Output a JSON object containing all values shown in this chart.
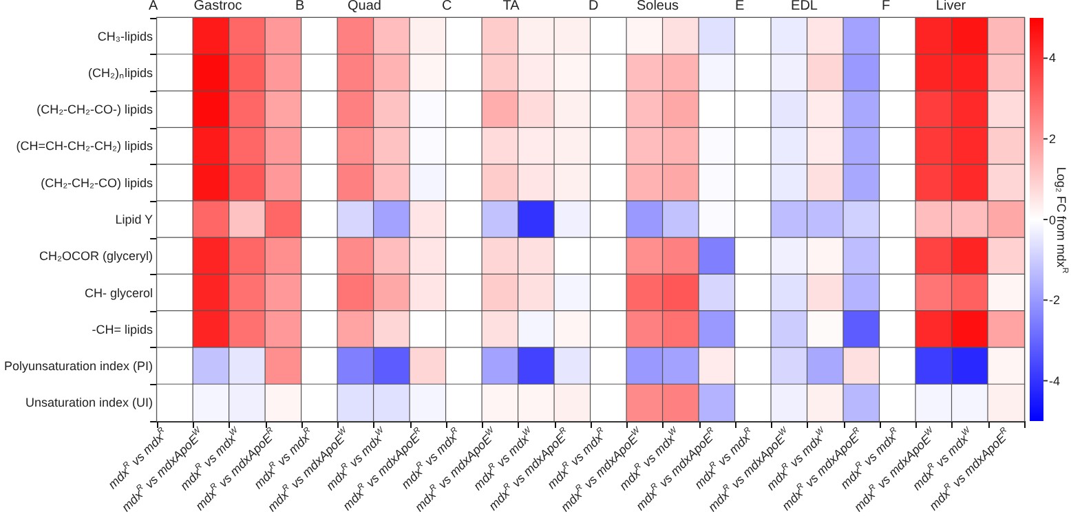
{
  "chart_data": {
    "type": "heatmap",
    "annotations": [
      "A",
      "Gastroc",
      "B",
      "Quad",
      "C",
      "TA",
      "D",
      "Soleus",
      "E",
      "EDL",
      "F",
      "Liver"
    ],
    "categories": [
      "mdx$^{R}$ vs mdx$^{R}$",
      "mdx$^{R}$ vs mdxApoE$^{W}$",
      "mdx$^{R}$ vs mdx$^{W}$",
      "mdx$^{R}$ vs mdxApoE$^{R}$",
      "mdx$^{R}$ vs mdx$^{R}$",
      "mdx$^{R}$ vs mdxApoE$^{W}$",
      "mdx$^{R}$ vs mdx$^{W}$",
      "mdx$^{R}$ vs mdxApoE$^{R}$",
      "mdx$^{R}$ vs mdx$^{R}$",
      "mdx$^{R}$ vs mdxApoE$^{W}$",
      "mdx$^{R}$ vs mdx$^{W}$",
      "mdx$^{R}$ vs mdxApoE$^{R}$",
      "mdx$^{R}$ vs mdx$^{R}$",
      "mdx$^{R}$ vs mdxApoE$^{W}$",
      "mdx$^{R}$ vs mdx$^{W}$",
      "mdx$^{R}$ vs mdxApoE$^{R}$",
      "mdx$^{R}$ vs mdx$^{R}$",
      "mdx$^{R}$ vs mdxApoE$^{W}$",
      "mdx$^{R}$ vs mdx$^{W}$",
      "mdx$^{R}$ vs mdxApoE$^{R}$",
      "mdx$^{R}$ vs mdx$^{R}$",
      "mdx$^{R}$ vs mdxApoE$^{W}$",
      "mdx$^{R}$ vs mdx$^{W}$",
      "mdx$^{R}$ vs mdxApoE$^{R}$"
    ],
    "y_categories": [
      "CH₃-lipids",
      "(CH₂)ₙlipids",
      "(CH₂-CH₂-CO-) lipids",
      "(CH=CH-CH₂-CH₂) lipids",
      "(CH₂-CH₂-CO) lipids",
      "Lipid Y",
      "CH₂OCOR (glyceryl)",
      "CH- glycerol",
      "-CH= lipids",
      "Polyunsaturation index (PI)",
      "Unsaturation index (UI)"
    ],
    "cells": [
      [
        0,
        4.5,
        3,
        2,
        0,
        2.5,
        1.3,
        0.3,
        0,
        1,
        0.3,
        0.3,
        0,
        0.2,
        0.6,
        -0.6,
        0,
        -0.4,
        0.5,
        -1.8,
        0,
        4.3,
        4.6,
        1.4
      ],
      [
        0,
        4.8,
        3.2,
        2,
        0,
        2.5,
        1.5,
        0.2,
        0,
        1,
        0.4,
        0.2,
        0,
        1.3,
        1.5,
        -0.2,
        0,
        -0.3,
        0.8,
        -2,
        0,
        4.3,
        4.4,
        1.2
      ],
      [
        0,
        4.8,
        3,
        1.8,
        0,
        2.5,
        1.2,
        -0.1,
        0,
        1.6,
        0.7,
        0.3,
        0,
        1.3,
        1.7,
        0,
        0,
        -0.5,
        0.4,
        -1.7,
        0,
        3.8,
        4.2,
        0.7
      ],
      [
        0,
        4.5,
        3,
        2,
        0,
        2.2,
        1.2,
        -0.1,
        0,
        0.7,
        0.4,
        0.3,
        0,
        1.3,
        1.5,
        -0.1,
        0,
        -0.4,
        0.4,
        -1.7,
        0,
        3.9,
        4.2,
        1
      ],
      [
        0,
        4.6,
        3.3,
        2,
        0,
        2.5,
        1.3,
        -0.2,
        0,
        1,
        0.5,
        0.3,
        0,
        1.5,
        1.7,
        -0.1,
        0,
        -0.4,
        0.6,
        -1.7,
        0,
        3.8,
        4.2,
        0.8
      ],
      [
        0,
        3,
        1.2,
        3,
        0,
        -0.8,
        -1.8,
        0.5,
        0,
        -1.2,
        -4,
        -0.3,
        0,
        -2,
        -1.2,
        -0.1,
        0,
        -1.3,
        -1.3,
        -0.9,
        0,
        1.3,
        1.3,
        1.7
      ],
      [
        0,
        4.3,
        3,
        2.2,
        0,
        2.3,
        1.3,
        0.5,
        0,
        0.8,
        0.6,
        0,
        0,
        2.2,
        2.5,
        -2.5,
        0,
        -0.3,
        0.2,
        -1.3,
        0,
        3.7,
        4.3,
        0.9
      ],
      [
        0,
        4.3,
        2.8,
        2,
        0,
        2.7,
        1.7,
        0.5,
        0,
        1,
        0.6,
        -0.2,
        0,
        3,
        3.3,
        -0.8,
        0,
        -0.6,
        0.6,
        -1.5,
        0,
        2.7,
        3.1,
        0.2
      ],
      [
        0,
        4.3,
        2.8,
        2,
        0,
        1.8,
        0.8,
        0,
        0,
        0.6,
        -0.2,
        0.2,
        0,
        2.5,
        2.8,
        -2,
        0,
        -1,
        0.1,
        -3.2,
        0,
        4.2,
        4.7,
        1.8
      ],
      [
        0,
        -1.2,
        -0.5,
        2.2,
        0,
        -2.5,
        -3.2,
        0.8,
        0,
        -1.8,
        -3.7,
        -0.5,
        0,
        -2,
        -1.8,
        0.4,
        0,
        -0.8,
        -1.7,
        0.6,
        0,
        -3.8,
        -4.2,
        0.2
      ],
      [
        0,
        -0.2,
        -0.3,
        0.2,
        0,
        -0.6,
        -0.6,
        -0.2,
        0,
        0.2,
        0.2,
        0.3,
        0,
        2.3,
        2.5,
        -1.5,
        0,
        -0.3,
        0.3,
        -1.4,
        0,
        -0.2,
        -0.2,
        0.3
      ]
    ],
    "clim": [
      -5,
      5
    ],
    "cticks": [
      -4,
      -2,
      0,
      2,
      4
    ],
    "clabel": "Log₂ FC from mdx$^{R}$"
  }
}
